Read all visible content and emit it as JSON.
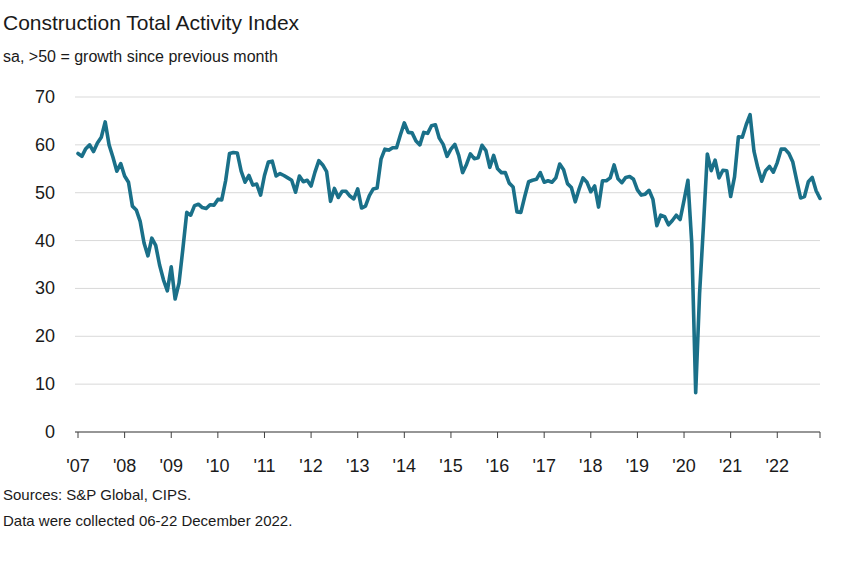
{
  "chart_data": {
    "type": "line",
    "title": "Construction Total Activity Index",
    "subtitle": "sa, >50 = growth since previous month",
    "notes": [
      "Sources: S&P Global, CIPS.",
      "Data were collected 06-22 December 2022."
    ],
    "color": "#1a7089",
    "grid": true,
    "ylim": [
      0,
      70
    ],
    "yticks": [
      0,
      10,
      20,
      30,
      40,
      50,
      60,
      70
    ],
    "categories": [
      "'07",
      null,
      null,
      null,
      null,
      null,
      null,
      null,
      null,
      null,
      null,
      null,
      "'08",
      null,
      null,
      null,
      null,
      null,
      null,
      null,
      null,
      null,
      null,
      null,
      "'09",
      null,
      null,
      null,
      null,
      null,
      null,
      null,
      null,
      null,
      null,
      null,
      "'10",
      null,
      null,
      null,
      null,
      null,
      null,
      null,
      null,
      null,
      null,
      null,
      "'11",
      null,
      null,
      null,
      null,
      null,
      null,
      null,
      null,
      null,
      null,
      null,
      "'12",
      null,
      null,
      null,
      null,
      null,
      null,
      null,
      null,
      null,
      null,
      null,
      "'13",
      null,
      null,
      null,
      null,
      null,
      null,
      null,
      null,
      null,
      null,
      null,
      "'14",
      null,
      null,
      null,
      null,
      null,
      null,
      null,
      null,
      null,
      null,
      null,
      "'15",
      null,
      null,
      null,
      null,
      null,
      null,
      null,
      null,
      null,
      null,
      null,
      "'16",
      null,
      null,
      null,
      null,
      null,
      null,
      null,
      null,
      null,
      null,
      null,
      "'17",
      null,
      null,
      null,
      null,
      null,
      null,
      null,
      null,
      null,
      null,
      null,
      "'18",
      null,
      null,
      null,
      null,
      null,
      null,
      null,
      null,
      null,
      null,
      null,
      "'19",
      null,
      null,
      null,
      null,
      null,
      null,
      null,
      null,
      null,
      null,
      null,
      "'20",
      null,
      null,
      null,
      null,
      null,
      null,
      null,
      null,
      null,
      null,
      null,
      "'21",
      null,
      null,
      null,
      null,
      null,
      null,
      null,
      null,
      null,
      null,
      null,
      "'22",
      null,
      null,
      null,
      null,
      null,
      null,
      null,
      null,
      null,
      null,
      null
    ],
    "values": [
      58.2,
      57.6,
      59.2,
      60,
      58.6,
      60.4,
      61.6,
      64.8,
      60,
      57.4,
      54.5,
      56.1,
      53.5,
      52.2,
      47.2,
      46.4,
      44,
      39.5,
      36.8,
      40.5,
      39,
      34.9,
      31.8,
      29.5,
      34.5,
      27.8,
      31.1,
      38.3,
      45.9,
      45.3,
      47.3,
      47.6,
      46.9,
      46.7,
      47.5,
      47.4,
      48.6,
      48.5,
      52.5,
      58.2,
      58.4,
      58.3,
      54.5,
      52.2,
      53.6,
      51.6,
      51.8,
      49.5,
      53.6,
      56.4,
      56.6,
      53.5,
      54,
      53.6,
      53.1,
      52.6,
      50.1,
      53.5,
      52.3,
      52.6,
      51.4,
      54.3,
      56.7,
      55.8,
      54.4,
      48.2,
      50.9,
      49,
      50.3,
      50.3,
      49.3,
      48.7,
      50.8,
      46.8,
      47.2,
      49.4,
      50.8,
      51,
      57,
      59.1,
      58.9,
      59.4,
      59.4,
      62.1,
      64.6,
      62.6,
      62.5,
      60.8,
      60,
      62.6,
      62.4,
      64,
      64.2,
      61.4,
      60.1,
      57.6,
      59.1,
      60.1,
      57.8,
      54.2,
      55.9,
      58.1,
      57.1,
      57.3,
      59.9,
      58.8,
      55.3,
      57.8,
      55,
      54.2,
      54.2,
      52,
      51.2,
      46,
      45.9,
      49.2,
      52.3,
      52.6,
      52.8,
      54.2,
      52.2,
      52.5,
      52.2,
      53.1,
      56,
      54.8,
      51.9,
      51.1,
      48.1,
      50.8,
      53.1,
      52.2,
      50.2,
      51.4,
      47,
      52.5,
      52.5,
      53.1,
      55.8,
      52.9,
      52.1,
      53.2,
      53.4,
      52.8,
      50.6,
      49.5,
      49.7,
      50.5,
      48.6,
      43.1,
      45.3,
      45,
      43.3,
      44.2,
      45.3,
      44.4,
      48.4,
      52.6,
      39.3,
      8.2,
      28.9,
      43.1,
      58.1,
      54.6,
      56.8,
      53.1,
      54.7,
      54.6,
      49.2,
      53.3,
      61.7,
      61.6,
      64.2,
      66.3,
      58.7,
      55.2,
      52.4,
      54.6,
      55.5,
      54.3,
      56.3,
      59.1,
      59.1,
      58.2,
      56.4,
      52.6,
      48.9,
      49.2,
      52.3,
      53.2,
      50.4,
      48.8
    ]
  }
}
